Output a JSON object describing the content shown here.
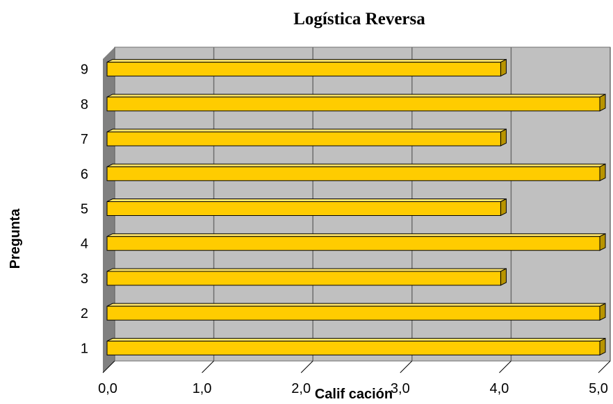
{
  "chart_data": {
    "type": "bar",
    "orientation": "horizontal",
    "style": "3d",
    "title": "Logística Reversa",
    "xlabel": "Calif cación",
    "ylabel": "Pregunta",
    "categories": [
      "1",
      "2",
      "3",
      "4",
      "5",
      "6",
      "7",
      "8",
      "9"
    ],
    "values": [
      5.0,
      5.0,
      4.0,
      5.0,
      4.0,
      5.0,
      4.0,
      5.0,
      4.0
    ],
    "xlim": [
      0,
      5
    ],
    "xticks": [
      "0,0",
      "1,0",
      "2,0",
      "3,0",
      "4,0",
      "5,0"
    ],
    "grid": true,
    "legend": "none",
    "colors": {
      "bar_front": "#FFCC00",
      "bar_top": "#FFE66A",
      "bar_side": "#B89400",
      "wall": "#C0C0C0",
      "floor": "#808080",
      "gridline": "#6E6E6E"
    }
  }
}
